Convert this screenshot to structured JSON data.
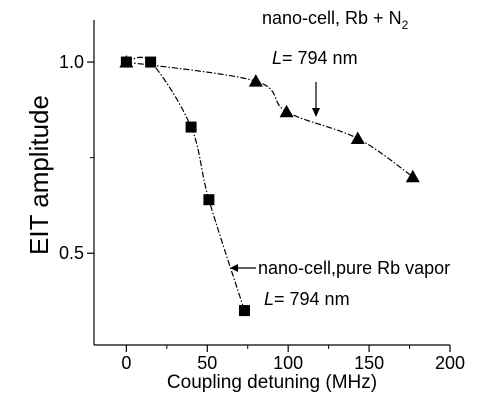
{
  "chart_data": {
    "type": "scatter",
    "xlabel": "Coupling detuning (MHz)",
    "ylabel": "EIT amplitude",
    "xlim": [
      -20,
      200
    ],
    "ylim": [
      0.26,
      1.11
    ],
    "x_ticks": [
      "0",
      "50",
      "100",
      "150",
      "200"
    ],
    "y_ticks": [
      "0.5",
      "1.0"
    ],
    "grid": false,
    "series": [
      {
        "name": "nano-cell, Rb + N2",
        "marker": "triangle",
        "x": [
          0,
          80,
          99,
          143,
          177
        ],
        "y": [
          1.0,
          0.95,
          0.87,
          0.8,
          0.7
        ]
      },
      {
        "name": "nano-cell,pure Rb vapor",
        "marker": "square",
        "x": [
          0,
          15,
          40,
          51,
          73
        ],
        "y": [
          1.0,
          1.0,
          0.83,
          0.64,
          0.35
        ]
      }
    ],
    "annotations": {
      "top_label_main": "nano-cell, Rb + N",
      "top_label_sub": "2",
      "top_L_var": "L",
      "top_L_val": "= 794 nm",
      "bottom_label": "nano-cell,pure Rb vapor",
      "bottom_L_var": "L",
      "bottom_L_val": "= 794 nm"
    },
    "colors": {
      "markers": "#000000",
      "axes": "#000000"
    }
  }
}
